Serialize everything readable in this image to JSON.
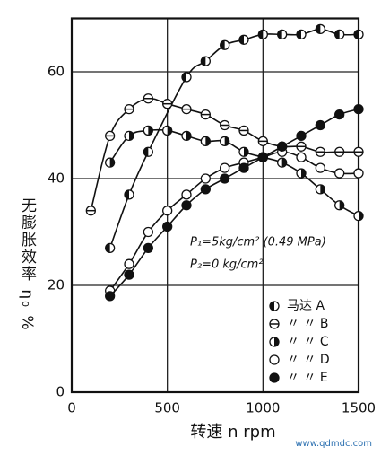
{
  "chart_data": {
    "type": "line",
    "y_label": "无膨胀效率 η₀ %",
    "x_label": "转速 n rpm",
    "annotations": [
      "P₁=5kg/cm² (0.49 MPa)",
      "P₂=0 kg/cm²"
    ],
    "watermark": "www.qdmdc.com",
    "xlim": [
      0,
      1500
    ],
    "xticks": [
      0,
      500,
      1000,
      1500
    ],
    "ylim": [
      0,
      70
    ],
    "yticks": [
      0,
      20,
      40,
      60
    ],
    "grid": true,
    "legend": "lower right",
    "series": [
      {
        "name": "马达 A",
        "color": "#111",
        "marker": "half-left",
        "x": [
          200,
          300,
          400,
          600,
          700,
          800,
          900,
          1000,
          1100,
          1200,
          1300,
          1400,
          1500
        ],
        "values": [
          27,
          37,
          45,
          59,
          62,
          65,
          66,
          67,
          67,
          67,
          68,
          67,
          67
        ]
      },
      {
        "name": "〃 〃 B",
        "color": "#111",
        "marker": "bar",
        "x": [
          100,
          200,
          300,
          400,
          500,
          600,
          700,
          800,
          900,
          1000,
          1100,
          1200,
          1300,
          1400,
          1500
        ],
        "values": [
          34,
          48,
          53,
          55,
          54,
          53,
          52,
          50,
          49,
          47,
          46,
          46,
          45,
          45,
          45
        ]
      },
      {
        "name": "〃 〃 C",
        "color": "#111",
        "marker": "half-right",
        "x": [
          200,
          300,
          400,
          500,
          600,
          700,
          800,
          900,
          1000,
          1100,
          1200,
          1300,
          1400,
          1500
        ],
        "values": [
          43,
          48,
          49,
          49,
          48,
          47,
          47,
          45,
          44,
          43,
          41,
          38,
          35,
          33
        ]
      },
      {
        "name": "〃 〃 D",
        "color": "#111",
        "marker": "open",
        "x": [
          200,
          300,
          400,
          500,
          600,
          700,
          800,
          900,
          1000,
          1100,
          1200,
          1300,
          1400,
          1500
        ],
        "values": [
          19,
          24,
          30,
          34,
          37,
          40,
          42,
          43,
          44,
          45,
          44,
          42,
          41,
          41
        ]
      },
      {
        "name": "〃 〃 E",
        "color": "#111",
        "marker": "filled",
        "x": [
          200,
          300,
          400,
          500,
          600,
          700,
          800,
          900,
          1000,
          1100,
          1200,
          1300,
          1400,
          1500
        ],
        "values": [
          18,
          22,
          27,
          31,
          35,
          38,
          40,
          42,
          44,
          46,
          48,
          50,
          52,
          53
        ]
      }
    ]
  }
}
